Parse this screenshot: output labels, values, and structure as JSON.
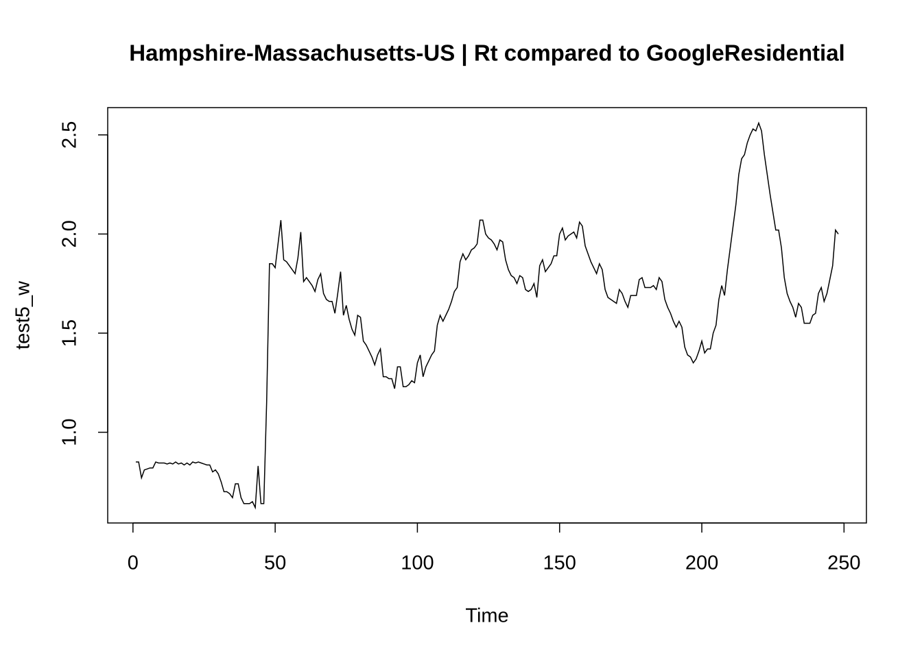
{
  "chart_data": {
    "type": "line",
    "title": "Hampshire-Massachusetts-US | Rt compared to GoogleResidential",
    "x_label": "Time",
    "y_label": "test5_w",
    "x": [
      1,
      2,
      3,
      4,
      5,
      6,
      7,
      8,
      9,
      10,
      11,
      12,
      13,
      14,
      15,
      16,
      17,
      18,
      19,
      20,
      21,
      22,
      23,
      24,
      25,
      26,
      27,
      28,
      29,
      30,
      31,
      32,
      33,
      34,
      35,
      36,
      37,
      38,
      39,
      40,
      41,
      42,
      43,
      44,
      45,
      46,
      47,
      48,
      49,
      50,
      51,
      52,
      53,
      54,
      55,
      56,
      57,
      58,
      59,
      60,
      61,
      62,
      63,
      64,
      65,
      66,
      67,
      68,
      69,
      70,
      71,
      72,
      73,
      74,
      75,
      76,
      77,
      78,
      79,
      80,
      81,
      82,
      83,
      84,
      85,
      86,
      87,
      88,
      89,
      90,
      91,
      92,
      93,
      94,
      95,
      96,
      97,
      98,
      99,
      100,
      101,
      102,
      103,
      104,
      105,
      106,
      107,
      108,
      109,
      110,
      111,
      112,
      113,
      114,
      115,
      116,
      117,
      118,
      119,
      120,
      121,
      122,
      123,
      124,
      125,
      126,
      127,
      128,
      129,
      130,
      131,
      132,
      133,
      134,
      135,
      136,
      137,
      138,
      139,
      140,
      141,
      142,
      143,
      144,
      145,
      146,
      147,
      148,
      149,
      150,
      151,
      152,
      153,
      154,
      155,
      156,
      157,
      158,
      159,
      160,
      161,
      162,
      163,
      164,
      165,
      166,
      167,
      168,
      169,
      170,
      171,
      172,
      173,
      174,
      175,
      176,
      177,
      178,
      179,
      180,
      181,
      182,
      183,
      184,
      185,
      186,
      187,
      188,
      189,
      190,
      191,
      192,
      193,
      194,
      195,
      196,
      197,
      198,
      199,
      200,
      201,
      202,
      203,
      204,
      205,
      206,
      207,
      208,
      209,
      210,
      211,
      212,
      213,
      214,
      215,
      216,
      217,
      218,
      219,
      220,
      221,
      222,
      223,
      224,
      225,
      226,
      227,
      228,
      229,
      230,
      231,
      232,
      233,
      234,
      235,
      236,
      237,
      238,
      239,
      240,
      241,
      242,
      243,
      244,
      245,
      246,
      247,
      248
    ],
    "values": [
      0.85,
      0.85,
      0.77,
      0.81,
      0.815,
      0.82,
      0.82,
      0.85,
      0.845,
      0.845,
      0.845,
      0.84,
      0.845,
      0.84,
      0.85,
      0.84,
      0.845,
      0.835,
      0.845,
      0.835,
      0.85,
      0.845,
      0.85,
      0.845,
      0.84,
      0.835,
      0.835,
      0.8,
      0.81,
      0.79,
      0.75,
      0.7,
      0.7,
      0.69,
      0.67,
      0.74,
      0.74,
      0.67,
      0.64,
      0.64,
      0.64,
      0.65,
      0.62,
      0.83,
      0.64,
      0.64,
      1.15,
      1.85,
      1.85,
      1.83,
      1.95,
      2.07,
      1.87,
      1.86,
      1.84,
      1.82,
      1.8,
      1.88,
      2.01,
      1.76,
      1.78,
      1.76,
      1.74,
      1.71,
      1.77,
      1.8,
      1.7,
      1.67,
      1.66,
      1.66,
      1.6,
      1.7,
      1.81,
      1.59,
      1.64,
      1.57,
      1.52,
      1.49,
      1.59,
      1.58,
      1.46,
      1.44,
      1.41,
      1.38,
      1.34,
      1.39,
      1.42,
      1.28,
      1.28,
      1.27,
      1.27,
      1.22,
      1.33,
      1.33,
      1.23,
      1.23,
      1.24,
      1.26,
      1.25,
      1.35,
      1.39,
      1.28,
      1.33,
      1.36,
      1.39,
      1.41,
      1.54,
      1.59,
      1.56,
      1.59,
      1.62,
      1.66,
      1.71,
      1.73,
      1.86,
      1.9,
      1.87,
      1.89,
      1.92,
      1.93,
      1.95,
      2.07,
      2.07,
      2.0,
      1.98,
      1.97,
      1.95,
      1.92,
      1.97,
      1.96,
      1.87,
      1.82,
      1.79,
      1.78,
      1.75,
      1.79,
      1.78,
      1.72,
      1.71,
      1.72,
      1.75,
      1.68,
      1.84,
      1.87,
      1.81,
      1.83,
      1.85,
      1.89,
      1.89,
      2.0,
      2.03,
      1.97,
      1.99,
      2.0,
      2.01,
      1.98,
      2.06,
      2.04,
      1.94,
      1.9,
      1.86,
      1.83,
      1.8,
      1.85,
      1.82,
      1.72,
      1.68,
      1.67,
      1.66,
      1.65,
      1.72,
      1.7,
      1.66,
      1.63,
      1.69,
      1.69,
      1.69,
      1.77,
      1.78,
      1.73,
      1.73,
      1.73,
      1.74,
      1.72,
      1.78,
      1.76,
      1.67,
      1.63,
      1.6,
      1.56,
      1.53,
      1.56,
      1.53,
      1.43,
      1.39,
      1.38,
      1.35,
      1.37,
      1.41,
      1.46,
      1.4,
      1.42,
      1.42,
      1.5,
      1.54,
      1.67,
      1.74,
      1.69,
      1.82,
      1.93,
      2.04,
      2.15,
      2.3,
      2.38,
      2.4,
      2.46,
      2.5,
      2.53,
      2.52,
      2.56,
      2.52,
      2.4,
      2.3,
      2.2,
      2.11,
      2.02,
      2.02,
      1.93,
      1.78,
      1.7,
      1.66,
      1.63,
      1.58,
      1.65,
      1.63,
      1.55,
      1.55,
      1.55,
      1.59,
      1.6,
      1.7,
      1.73,
      1.66,
      1.7,
      1.77,
      1.84,
      2.02,
      2.0
    ],
    "color": "#000000",
    "xlim": [
      -8.88,
      257.88
    ],
    "xticks": [
      0,
      50,
      100,
      150,
      200,
      250
    ],
    "ylim": [
      0.5424,
      2.6376
    ],
    "yticks": [
      {
        "value": 1,
        "label": "1.0"
      },
      1.5,
      {
        "value": 2,
        "label": "2.0"
      },
      2.5
    ]
  }
}
